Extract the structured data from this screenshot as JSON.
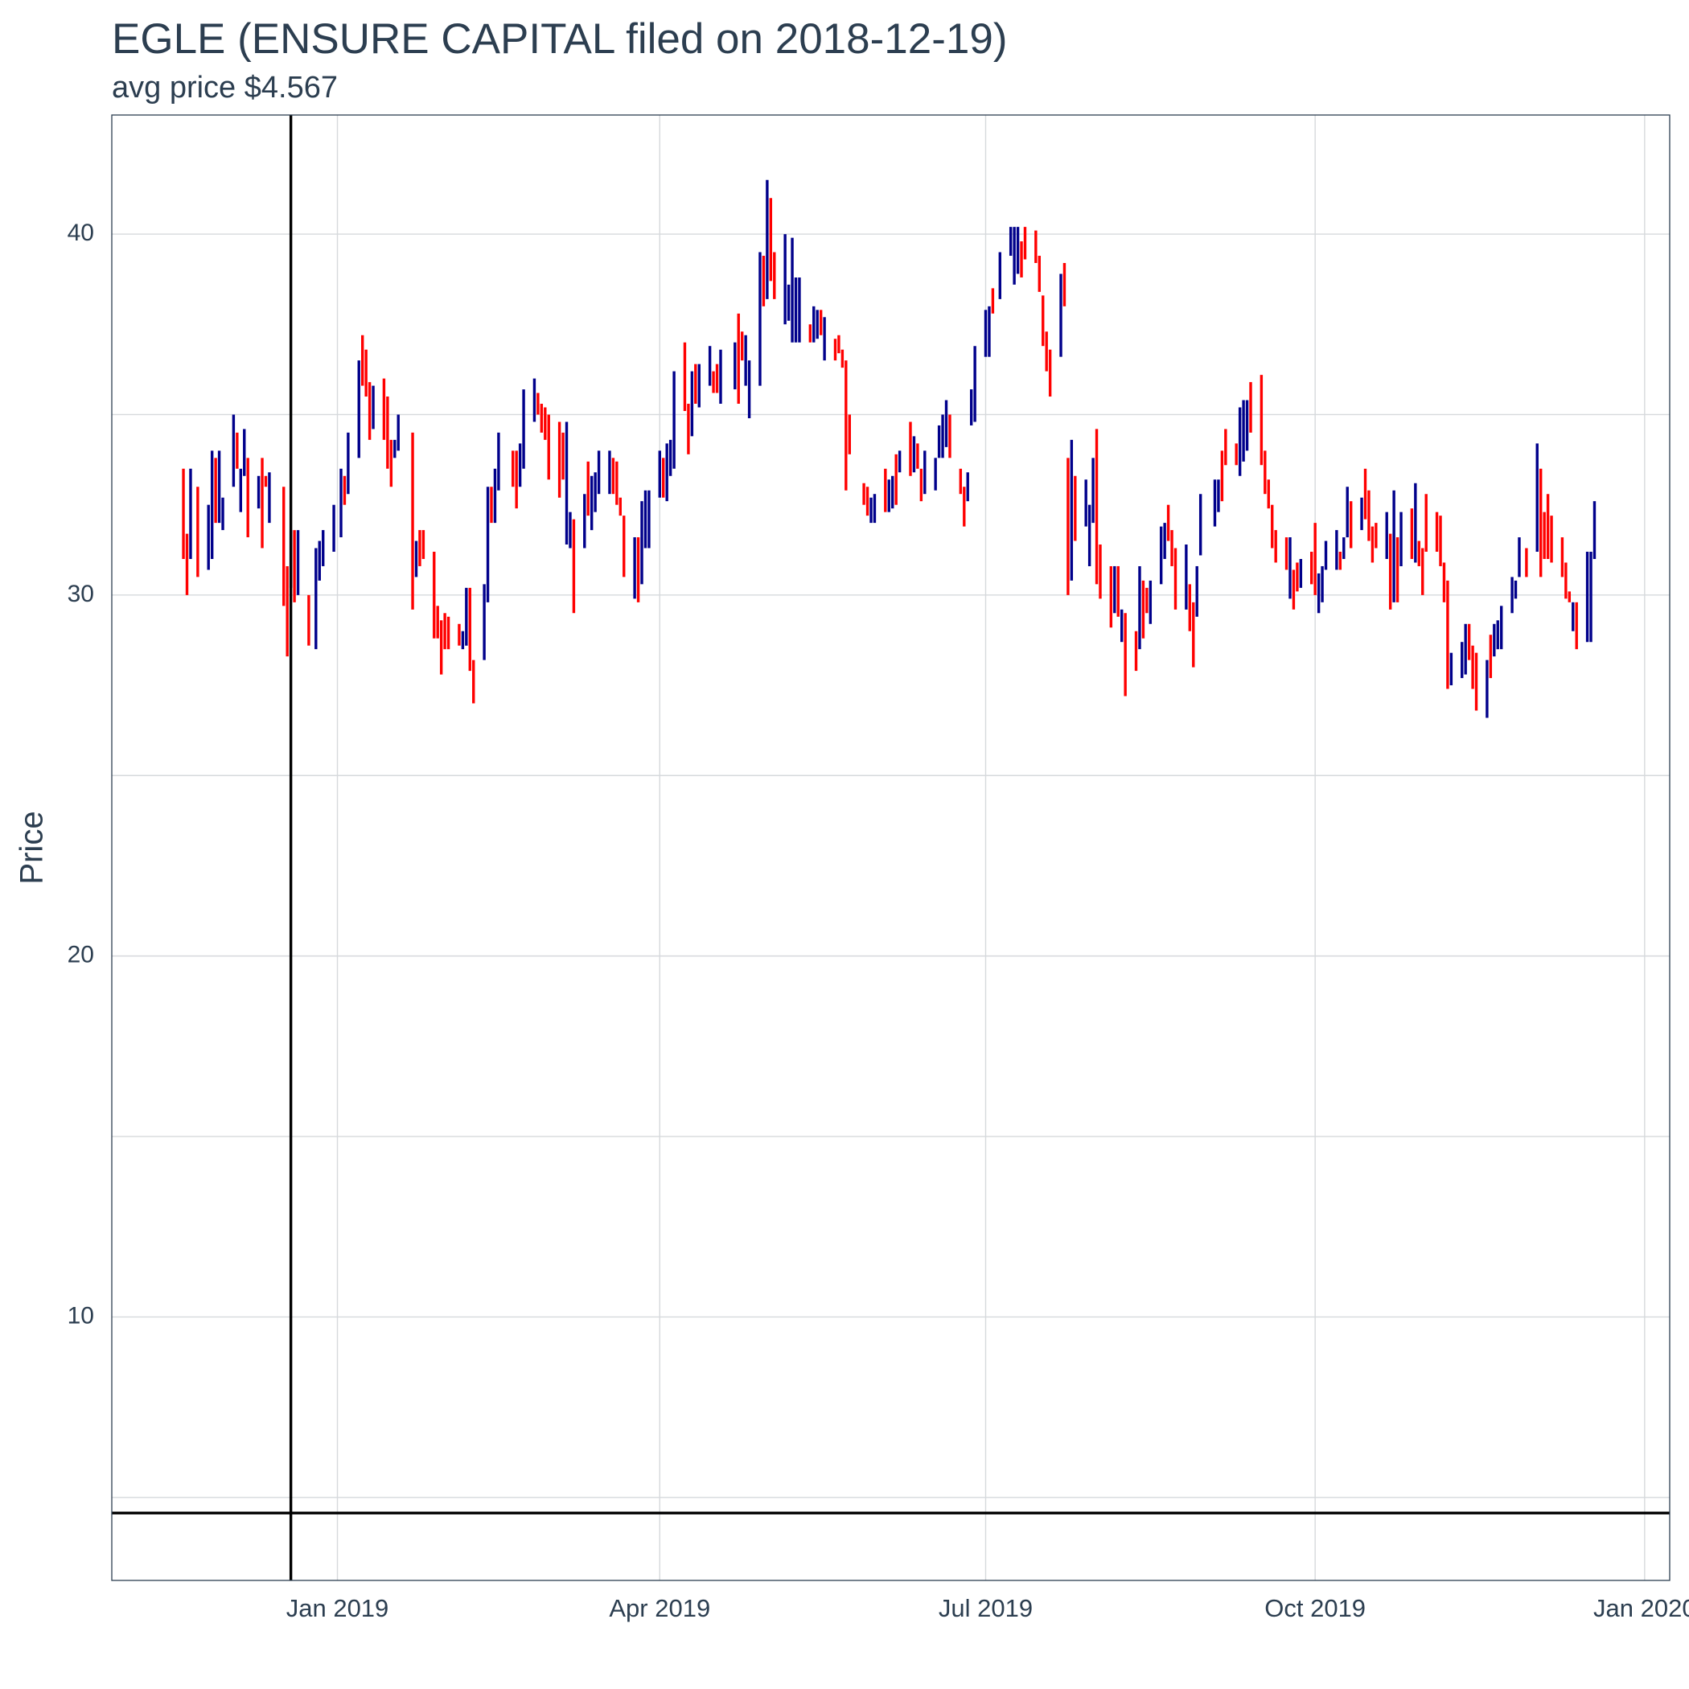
{
  "chart_data": {
    "type": "ohlc",
    "title": "EGLE (ENSURE CAPITAL filed on 2018-12-19)",
    "subtitle": "avg price $4.567",
    "y_label": "Price",
    "up_color": "#00008b",
    "down_color": "#ff0000",
    "grid": true,
    "xlim": [
      "2018-10-30",
      "2020-01-08"
    ],
    "xticks": [
      {
        "value": "2019-01-01",
        "label": "Jan 2019"
      },
      {
        "value": "2019-04-01",
        "label": "Apr 2019"
      },
      {
        "value": "2019-07-01",
        "label": "Jul 2019"
      },
      {
        "value": "2019-10-01",
        "label": "Oct 2019"
      },
      {
        "value": "2020-01-01",
        "label": "Jan 2020"
      }
    ],
    "ylim": [
      2.7,
      43.3
    ],
    "yticks": [
      10,
      20,
      30,
      40
    ],
    "y_minor_grid": [
      5,
      15,
      25,
      35
    ],
    "vline": "2018-12-19",
    "hline": 4.567,
    "x": [
      "2018-11-19",
      "2018-11-20",
      "2018-11-21",
      "2018-11-23",
      "2018-11-26",
      "2018-11-27",
      "2018-11-28",
      "2018-11-29",
      "2018-11-30",
      "2018-12-03",
      "2018-12-04",
      "2018-12-05",
      "2018-12-06",
      "2018-12-07",
      "2018-12-10",
      "2018-12-11",
      "2018-12-12",
      "2018-12-13",
      "2018-12-17",
      "2018-12-18",
      "2018-12-19",
      "2018-12-20",
      "2018-12-21",
      "2018-12-24",
      "2018-12-26",
      "2018-12-27",
      "2018-12-28",
      "2018-12-31",
      "2019-01-02",
      "2019-01-03",
      "2019-01-04",
      "2019-01-07",
      "2019-01-08",
      "2019-01-09",
      "2019-01-10",
      "2019-01-11",
      "2019-01-14",
      "2019-01-15",
      "2019-01-16",
      "2019-01-17",
      "2019-01-18",
      "2019-01-22",
      "2019-01-23",
      "2019-01-24",
      "2019-01-25",
      "2019-01-28",
      "2019-01-29",
      "2019-01-30",
      "2019-01-31",
      "2019-02-01",
      "2019-02-04",
      "2019-02-05",
      "2019-02-06",
      "2019-02-07",
      "2019-02-08",
      "2019-02-11",
      "2019-02-12",
      "2019-02-13",
      "2019-02-14",
      "2019-02-15",
      "2019-02-19",
      "2019-02-20",
      "2019-02-21",
      "2019-02-22",
      "2019-02-25",
      "2019-02-26",
      "2019-02-27",
      "2019-02-28",
      "2019-03-01",
      "2019-03-04",
      "2019-03-05",
      "2019-03-06",
      "2019-03-07",
      "2019-03-08",
      "2019-03-11",
      "2019-03-12",
      "2019-03-13",
      "2019-03-14",
      "2019-03-15",
      "2019-03-18",
      "2019-03-19",
      "2019-03-20",
      "2019-03-21",
      "2019-03-22",
      "2019-03-25",
      "2019-03-26",
      "2019-03-27",
      "2019-03-28",
      "2019-03-29",
      "2019-04-01",
      "2019-04-02",
      "2019-04-03",
      "2019-04-04",
      "2019-04-05",
      "2019-04-08",
      "2019-04-09",
      "2019-04-10",
      "2019-04-11",
      "2019-04-12",
      "2019-04-15",
      "2019-04-16",
      "2019-04-17",
      "2019-04-18",
      "2019-04-22",
      "2019-04-23",
      "2019-04-24",
      "2019-04-25",
      "2019-04-26",
      "2019-04-29",
      "2019-04-30",
      "2019-05-01",
      "2019-05-02",
      "2019-05-03",
      "2019-05-06",
      "2019-05-07",
      "2019-05-08",
      "2019-05-09",
      "2019-05-10",
      "2019-05-13",
      "2019-05-14",
      "2019-05-15",
      "2019-05-16",
      "2019-05-17",
      "2019-05-20",
      "2019-05-21",
      "2019-05-22",
      "2019-05-23",
      "2019-05-24",
      "2019-05-28",
      "2019-05-29",
      "2019-05-30",
      "2019-05-31",
      "2019-06-03",
      "2019-06-04",
      "2019-06-05",
      "2019-06-06",
      "2019-06-07",
      "2019-06-10",
      "2019-06-11",
      "2019-06-12",
      "2019-06-13",
      "2019-06-14",
      "2019-06-17",
      "2019-06-18",
      "2019-06-19",
      "2019-06-20",
      "2019-06-21",
      "2019-06-24",
      "2019-06-25",
      "2019-06-26",
      "2019-06-27",
      "2019-06-28",
      "2019-07-01",
      "2019-07-02",
      "2019-07-03",
      "2019-07-05",
      "2019-07-08",
      "2019-07-09",
      "2019-07-10",
      "2019-07-11",
      "2019-07-12",
      "2019-07-15",
      "2019-07-16",
      "2019-07-17",
      "2019-07-18",
      "2019-07-19",
      "2019-07-22",
      "2019-07-23",
      "2019-07-24",
      "2019-07-25",
      "2019-07-26",
      "2019-07-29",
      "2019-07-30",
      "2019-07-31",
      "2019-08-01",
      "2019-08-02",
      "2019-08-05",
      "2019-08-06",
      "2019-08-07",
      "2019-08-08",
      "2019-08-09",
      "2019-08-12",
      "2019-08-13",
      "2019-08-14",
      "2019-08-15",
      "2019-08-16",
      "2019-08-19",
      "2019-08-20",
      "2019-08-21",
      "2019-08-22",
      "2019-08-23",
      "2019-08-26",
      "2019-08-27",
      "2019-08-28",
      "2019-08-29",
      "2019-08-30",
      "2019-09-03",
      "2019-09-04",
      "2019-09-05",
      "2019-09-06",
      "2019-09-09",
      "2019-09-10",
      "2019-09-11",
      "2019-09-12",
      "2019-09-13",
      "2019-09-16",
      "2019-09-17",
      "2019-09-18",
      "2019-09-19",
      "2019-09-20",
      "2019-09-23",
      "2019-09-24",
      "2019-09-25",
      "2019-09-26",
      "2019-09-27",
      "2019-09-30",
      "2019-10-01",
      "2019-10-02",
      "2019-10-03",
      "2019-10-04",
      "2019-10-07",
      "2019-10-08",
      "2019-10-09",
      "2019-10-10",
      "2019-10-11",
      "2019-10-14",
      "2019-10-15",
      "2019-10-16",
      "2019-10-17",
      "2019-10-18",
      "2019-10-21",
      "2019-10-22",
      "2019-10-23",
      "2019-10-24",
      "2019-10-25",
      "2019-10-28",
      "2019-10-29",
      "2019-10-30",
      "2019-10-31",
      "2019-11-01",
      "2019-11-04",
      "2019-11-05",
      "2019-11-06",
      "2019-11-07",
      "2019-11-08",
      "2019-11-11",
      "2019-11-12",
      "2019-11-13",
      "2019-11-14",
      "2019-11-15",
      "2019-11-18",
      "2019-11-19",
      "2019-11-20",
      "2019-11-21",
      "2019-11-22",
      "2019-11-25",
      "2019-11-26",
      "2019-11-27",
      "2019-11-29",
      "2019-12-02",
      "2019-12-03",
      "2019-12-04",
      "2019-12-05",
      "2019-12-06",
      "2019-12-09",
      "2019-12-10",
      "2019-12-11",
      "2019-12-12",
      "2019-12-13",
      "2019-12-16",
      "2019-12-17",
      "2019-12-18"
    ],
    "open": [
      33.5,
      31.7,
      31,
      33,
      30.7,
      31,
      33.8,
      32,
      31.8,
      33,
      34.5,
      32.3,
      33.3,
      33.8,
      32.4,
      33.8,
      33.3,
      32,
      33,
      30.8,
      30.2,
      31.8,
      30,
      30,
      28.5,
      30.4,
      30.8,
      31.2,
      31.6,
      33.3,
      32.8,
      33.8,
      37.2,
      36.8,
      35.9,
      34.6,
      36,
      35.5,
      34.3,
      33.8,
      34,
      34.5,
      30.5,
      31.8,
      31.8,
      31.2,
      29.7,
      29.3,
      29.5,
      29.4,
      29.2,
      28.5,
      28.6,
      30.2,
      28.2,
      28.2,
      29.8,
      33,
      32,
      32.9,
      34,
      34,
      33,
      33.5,
      34.8,
      35.6,
      35.3,
      35.2,
      35,
      34.8,
      34.5,
      31.4,
      31.3,
      32.1,
      31.3,
      33.7,
      31.8,
      32.3,
      32.8,
      32.8,
      33.8,
      33.7,
      32.7,
      32.2,
      29.9,
      31.6,
      30.3,
      31.3,
      31.3,
      32.7,
      33.8,
      32.6,
      33.3,
      33.5,
      37,
      35.3,
      34.4,
      36.4,
      35.2,
      35.8,
      36.2,
      36.4,
      35.3,
      35.7,
      37.8,
      37.3,
      35.8,
      34.9,
      35.8,
      39.4,
      38.2,
      41,
      39.5,
      37.5,
      37.6,
      37,
      37,
      37,
      37.5,
      37,
      37.1,
      37.9,
      36.5,
      37.1,
      37.2,
      36.8,
      36.5,
      35,
      33.1,
      33,
      32,
      32,
      33.5,
      32.3,
      32.4,
      33.9,
      33.4,
      34.8,
      33.4,
      34.2,
      33.5,
      32.8,
      32.9,
      33.8,
      33.8,
      34.1,
      35,
      33.5,
      33,
      32.6,
      34.7,
      34.8,
      36.6,
      36.6,
      38.5,
      38.2,
      39.4,
      38.6,
      38.9,
      39.8,
      40.2,
      40.1,
      39.4,
      38.3,
      37.3,
      36.8,
      36.6,
      39.2,
      33.8,
      30.4,
      33.3,
      31.9,
      30.8,
      32,
      34.6,
      31.4,
      30.8,
      29.5,
      30.8,
      28.7,
      29.5,
      29,
      28.5,
      30.4,
      30.2,
      29.2,
      30.3,
      31,
      32.5,
      31.8,
      31.3,
      29.6,
      30.3,
      29.8,
      29.4,
      31.1,
      31.9,
      32.3,
      34,
      34.6,
      34.2,
      33.3,
      33.7,
      34,
      35.9,
      36.1,
      34,
      33.2,
      32.5,
      31.8,
      31.6,
      29.9,
      30.7,
      30.9,
      30.2,
      31.2,
      32,
      29.5,
      29.8,
      30.7,
      30.7,
      31.2,
      31,
      31.6,
      32.6,
      31.8,
      33.5,
      32.9,
      31.9,
      32,
      31,
      31.7,
      29.8,
      31.6,
      30.8,
      32.4,
      30.9,
      31.5,
      31.3,
      32.8,
      32.3,
      32.2,
      30.9,
      30.4,
      27.5,
      27.7,
      27.8,
      29.2,
      28.6,
      28.4,
      26.6,
      28.9,
      28.3,
      28.5,
      28.5,
      29.5,
      29.9,
      30.5,
      31.3,
      31.2,
      33.5,
      32.3,
      32.8,
      32.2,
      31.6,
      30.9,
      30.1,
      29,
      29.8,
      28.7,
      28.7,
      31
    ],
    "close": [
      31,
      30,
      33.5,
      30.5,
      32.5,
      34,
      32,
      34,
      32.7,
      35,
      33.5,
      33.5,
      34.6,
      31.6,
      33.3,
      31.3,
      33,
      33.4,
      29.7,
      28.3,
      31.8,
      29.8,
      31.8,
      28.6,
      31.3,
      31.5,
      31.8,
      32.5,
      33.5,
      32.5,
      34.5,
      36.5,
      35.8,
      35.5,
      34.3,
      35.8,
      34.3,
      33.5,
      33,
      34.3,
      35,
      29.6,
      31.5,
      30.8,
      31,
      28.8,
      28.8,
      27.8,
      28.5,
      28.5,
      28.6,
      29,
      30.2,
      27.9,
      27,
      30.3,
      33,
      32,
      33.5,
      34.5,
      33,
      32.4,
      34.2,
      35.7,
      36,
      35,
      34.5,
      34.3,
      33.2,
      32.7,
      33.2,
      34.8,
      32.3,
      29.5,
      32.8,
      32.2,
      33.3,
      33.4,
      34,
      34,
      32.8,
      32.5,
      32.2,
      30.5,
      31.6,
      29.8,
      32.6,
      32.9,
      32.9,
      34,
      32.7,
      34.2,
      34.3,
      36.2,
      35.1,
      33.9,
      36.2,
      35.3,
      36.4,
      36.9,
      35.6,
      35.6,
      36.8,
      37,
      35.3,
      36.5,
      37.2,
      36.5,
      39.5,
      38,
      41.5,
      38.7,
      38.2,
      40,
      38.6,
      39.9,
      38.8,
      38.8,
      37,
      38,
      37.9,
      37.2,
      37.7,
      36.5,
      36.7,
      36.3,
      32.9,
      33.9,
      32.5,
      32.2,
      32.7,
      32.8,
      32.3,
      33.2,
      33.3,
      32.5,
      34,
      33.3,
      34.4,
      33.5,
      32.6,
      34,
      33.8,
      34.7,
      35,
      35.4,
      33.8,
      32.8,
      31.9,
      33.4,
      35.7,
      36.9,
      37.9,
      38,
      37.8,
      39.5,
      40.2,
      40.2,
      40.2,
      38.8,
      39.3,
      39.2,
      38.4,
      36.9,
      36.2,
      35.5,
      38.9,
      38,
      30,
      34.3,
      31.5,
      33.2,
      32.5,
      33.8,
      30.3,
      29.9,
      29.1,
      30.8,
      29.4,
      29.6,
      27.2,
      27.9,
      30.8,
      28.8,
      29.5,
      30.4,
      31.9,
      32,
      31.5,
      30.8,
      29.6,
      31.4,
      29,
      28,
      30.8,
      32.8,
      33.2,
      33.2,
      32.6,
      33.6,
      33.6,
      35.2,
      35.4,
      35.4,
      34.5,
      33.6,
      32.8,
      32.4,
      31.3,
      30.9,
      30.7,
      31.6,
      29.6,
      30.1,
      31,
      30.3,
      30,
      30.6,
      30.8,
      31.5,
      31.8,
      30.7,
      31.6,
      33,
      31.3,
      32.7,
      32.1,
      31.5,
      30.9,
      31.3,
      32.3,
      29.6,
      32.9,
      29.8,
      32.3,
      31,
      33.1,
      30.8,
      30,
      31.2,
      31.2,
      30.8,
      29.8,
      27.4,
      28.4,
      28.7,
      29.2,
      28.2,
      27.4,
      26.8,
      28.2,
      27.7,
      29.2,
      29.3,
      29.7,
      30.5,
      30.4,
      31.6,
      30.5,
      34.2,
      30.5,
      31,
      31,
      30.9,
      30.5,
      29.9,
      29.8,
      29.8,
      28.5,
      31.2,
      31.2,
      32.6
    ]
  }
}
